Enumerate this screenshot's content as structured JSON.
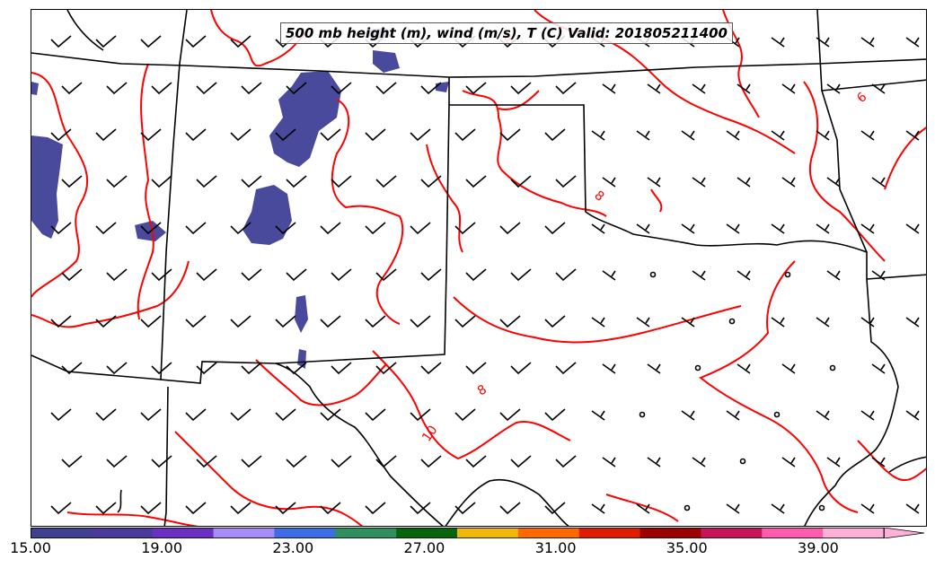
{
  "title": "500 mb height (m), wind (m/s), T (C) Valid: 201805211400",
  "contour_labels": [
    "6",
    "8",
    "8",
    "8",
    "10"
  ],
  "colorbar": {
    "tick_labels": [
      "15.00",
      "19.00",
      "23.00",
      "27.00",
      "31.00",
      "35.00",
      "39.00"
    ],
    "tick_values": [
      15,
      19,
      23,
      27,
      31,
      35,
      39
    ],
    "min": 15,
    "max": 43,
    "colors": [
      "#404090",
      "#4b3a9c",
      "#6a2fc3",
      "#a78bfa",
      "#3b6ee6",
      "#2f8f5e",
      "#056608",
      "#f2b807",
      "#ff6a00",
      "#e01b00",
      "#9c0000",
      "#c8145a",
      "#ff5cad",
      "#ffb0d8"
    ]
  },
  "colors": {
    "temperature_contour": "#ff0000",
    "shading": "#4a4a9c",
    "boundaries": "#000000"
  }
}
